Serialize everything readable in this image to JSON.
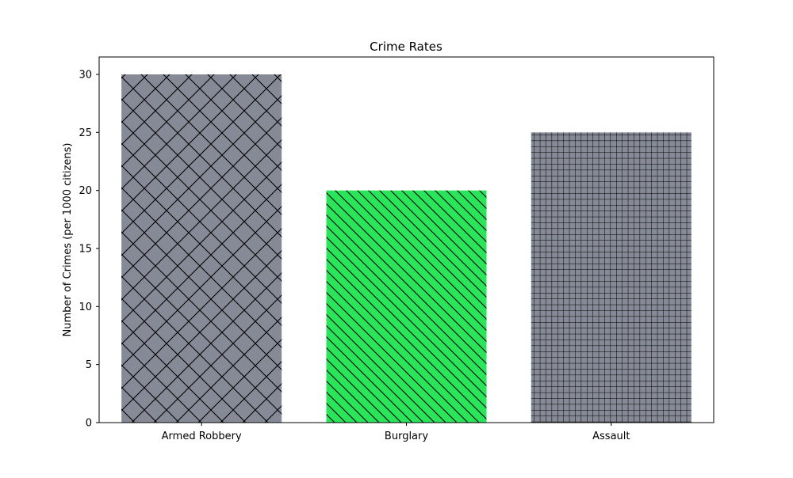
{
  "chart_data": {
    "type": "bar",
    "title": "Crime Rates",
    "xlabel": "",
    "ylabel": "Number of Crimes (per 1000 citizens)",
    "categories": [
      "Armed Robbery",
      "Burglary",
      "Assault"
    ],
    "values": [
      30,
      20,
      25
    ],
    "ylim": [
      0,
      31.5
    ],
    "yticks": [
      0,
      5,
      10,
      15,
      20,
      25,
      30
    ],
    "bar_colors": [
      "#868a97",
      "#2ae45a",
      "#868a97"
    ],
    "hatch_patterns": [
      "cross-diagonal",
      "diagonal-backslash",
      "grid"
    ],
    "grid": false,
    "legend": "none"
  }
}
